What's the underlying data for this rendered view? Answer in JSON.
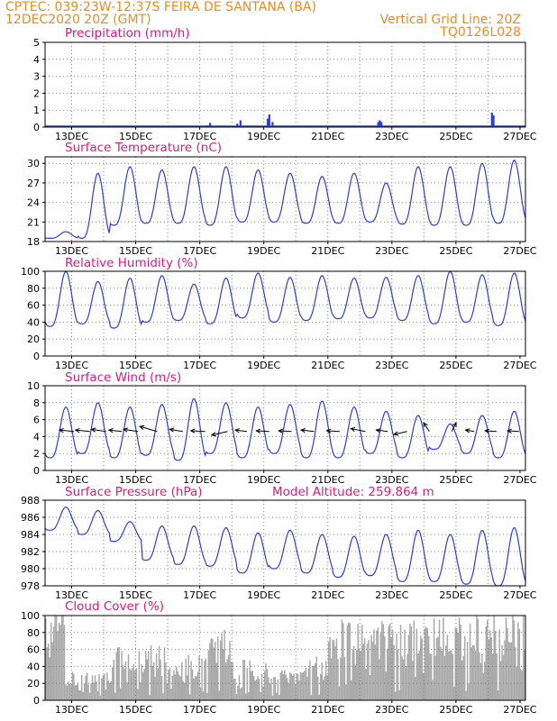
{
  "header": {
    "line1_left": "CPTEC:   039:23W-12:37S  FEIRA DE SANTANA (BA)",
    "line2_left": "12DEC2020 20Z (GMT)",
    "line2_right": "Vertical Grid Line: 20Z",
    "line3_right": "TQ0126L028",
    "model_altitude": "Model Altitude: 259.864 m"
  },
  "colors": {
    "line": "#2b3fe0",
    "bar": "#a9a9a9",
    "title": "#e0197d",
    "header": "#f08a24",
    "grid": "#808080"
  },
  "x_tick_labels": [
    "13DEC",
    "15DEC",
    "17DEC",
    "19DEC",
    "21DEC",
    "23DEC",
    "25DEC",
    "27DEC"
  ],
  "x_range_days": [
    12.0,
    27.0
  ],
  "chart_data": [
    {
      "type": "bar",
      "title": "Precipitation (mm/h)",
      "ylim": [
        0,
        5
      ],
      "yticks": [
        0,
        1,
        2,
        3,
        4,
        5
      ],
      "x": [
        16.05,
        16.15,
        17.05,
        17.15,
        18.0,
        18.1,
        18.95,
        19.0,
        19.1,
        19.95,
        21.0,
        21.95,
        22.4,
        22.45,
        22.5,
        23.05,
        24.0,
        24.95,
        25.95,
        26.0
      ],
      "values": [
        0.05,
        0.05,
        0.1,
        0.25,
        0.2,
        0.4,
        0.5,
        0.75,
        0.3,
        0.05,
        0.05,
        0.05,
        0.3,
        0.4,
        0.3,
        0.05,
        0.05,
        0.05,
        0.85,
        0.7
      ]
    },
    {
      "type": "line",
      "title": "Surface Temperature (nC)",
      "ylim": [
        18,
        31
      ],
      "yticks": [
        18,
        21,
        24,
        27,
        30
      ],
      "daily": {
        "max": [
          19.5,
          28.5,
          29.5,
          29.0,
          29.5,
          29.5,
          29.0,
          28.5,
          28.0,
          28.5,
          27.0,
          29.5,
          29.5,
          30.0,
          30.5
        ],
        "min": [
          18.5,
          18.5,
          20.5,
          20.8,
          20.8,
          20.5,
          21.0,
          21.0,
          20.8,
          20.8,
          21.0,
          20.7,
          20.5,
          20.5,
          20.8
        ]
      }
    },
    {
      "type": "line",
      "title": "Relative Humidity (%)",
      "ylim": [
        0,
        100
      ],
      "yticks": [
        0,
        20,
        40,
        60,
        80,
        100
      ],
      "daily": {
        "max": [
          100,
          88,
          92,
          95,
          85,
          92,
          98,
          93,
          95,
          92,
          93,
          95,
          100,
          96,
          98
        ],
        "min": [
          35,
          38,
          33,
          40,
          42,
          38,
          45,
          40,
          42,
          44,
          45,
          42,
          38,
          40,
          36
        ]
      }
    },
    {
      "type": "line",
      "title": "Surface Wind (m/s)",
      "ylim": [
        0,
        10
      ],
      "yticks": [
        0,
        2,
        4,
        6,
        8,
        10
      ],
      "daily": {
        "max": [
          7.5,
          8.0,
          7.5,
          7.8,
          8.5,
          8.0,
          7.5,
          7.8,
          8.2,
          7.5,
          7.0,
          6.5,
          5.5,
          6.5,
          7.0
        ],
        "min": [
          1.5,
          2.0,
          1.5,
          1.8,
          1.2,
          2.0,
          1.5,
          2.0,
          1.5,
          1.5,
          2.0,
          1.5,
          2.5,
          2.0,
          1.5
        ]
      },
      "arrows": [
        {
          "day": 12.9,
          "u": -1.0,
          "v": 0.1
        },
        {
          "day": 13.4,
          "u": -1.0,
          "v": 0.1
        },
        {
          "day": 13.9,
          "u": -1.0,
          "v": 0.15
        },
        {
          "day": 14.4,
          "u": -0.9,
          "v": 0.1
        },
        {
          "day": 14.9,
          "u": -1.0,
          "v": 0.15
        },
        {
          "day": 15.5,
          "u": -1.2,
          "v": 0.35
        },
        {
          "day": 16.3,
          "u": -0.9,
          "v": 0.15
        },
        {
          "day": 17.0,
          "u": -1.0,
          "v": 0.05
        },
        {
          "day": 17.7,
          "u": -1.1,
          "v": -0.25
        },
        {
          "day": 18.3,
          "u": -0.8,
          "v": 0.1
        },
        {
          "day": 19.0,
          "u": -0.9,
          "v": 0.05
        },
        {
          "day": 19.7,
          "u": -0.9,
          "v": 0.05
        },
        {
          "day": 20.4,
          "u": -0.9,
          "v": 0.1
        },
        {
          "day": 21.2,
          "u": -0.9,
          "v": 0.05
        },
        {
          "day": 22.0,
          "u": -1.0,
          "v": 0.2
        },
        {
          "day": 22.7,
          "u": -0.8,
          "v": 0.1
        },
        {
          "day": 23.3,
          "u": -0.9,
          "v": -0.2
        },
        {
          "day": 24.0,
          "u": -0.4,
          "v": 0.6
        },
        {
          "day": 24.7,
          "u": 0.3,
          "v": 0.6
        },
        {
          "day": 25.4,
          "u": -0.6,
          "v": 0.1
        },
        {
          "day": 26.1,
          "u": -0.8,
          "v": 0.05
        },
        {
          "day": 26.8,
          "u": -0.8,
          "v": 0.05
        }
      ]
    },
    {
      "type": "line",
      "title": "Surface Pressure (hPa)",
      "ylim": [
        978,
        988
      ],
      "yticks": [
        978,
        980,
        982,
        984,
        986,
        988
      ],
      "daily": {
        "max": [
          987.2,
          986.8,
          985.5,
          985.0,
          985.0,
          984.8,
          984.2,
          984.5,
          984.0,
          983.8,
          984.0,
          984.5,
          984.0,
          984.5,
          984.8
        ],
        "min": [
          984.5,
          984.0,
          983.2,
          981.0,
          980.5,
          980.3,
          979.5,
          980.0,
          979.5,
          979.0,
          979.2,
          978.5,
          978.5,
          978.2,
          978.0
        ]
      }
    },
    {
      "type": "bar",
      "title": "Cloud Cover (%)",
      "ylim": [
        0,
        100
      ],
      "yticks": [
        0,
        20,
        40,
        60,
        80,
        100
      ],
      "segments": [
        {
          "from": 12.0,
          "to": 12.6,
          "level": 95
        },
        {
          "from": 12.6,
          "to": 14.0,
          "level": 30
        },
        {
          "from": 14.0,
          "to": 15.8,
          "level": 55
        },
        {
          "from": 15.8,
          "to": 17.0,
          "level": 45
        },
        {
          "from": 17.0,
          "to": 17.8,
          "level": 70
        },
        {
          "from": 17.8,
          "to": 19.0,
          "level": 40
        },
        {
          "from": 19.0,
          "to": 20.0,
          "level": 30
        },
        {
          "from": 20.0,
          "to": 20.8,
          "level": 45
        },
        {
          "from": 20.8,
          "to": 23.5,
          "level": 80
        },
        {
          "from": 23.5,
          "to": 27.0,
          "level": 85
        }
      ]
    }
  ]
}
